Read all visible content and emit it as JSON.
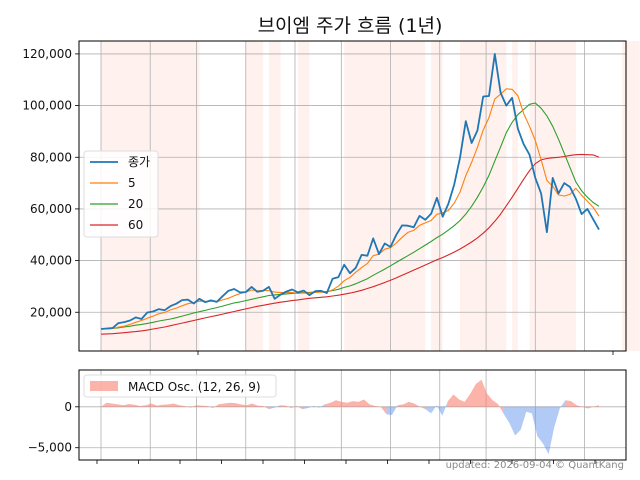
{
  "chart_data": [
    {
      "type": "line",
      "title": "브이엠 주가 흐름 (1년)",
      "ylim": [
        5000,
        125000
      ],
      "yticks": [
        20000,
        40000,
        60000,
        80000,
        100000,
        120000
      ],
      "ytick_labels": [
        "20,000",
        "40,000",
        "60,000",
        "80,000",
        "100,000",
        "120,000"
      ],
      "grid": true,
      "legend_position": "center-left",
      "shaded_periods": [
        [
          0,
          17
        ],
        [
          25,
          28
        ],
        [
          29,
          31
        ],
        [
          34,
          36
        ],
        [
          42,
          56
        ],
        [
          57,
          59
        ],
        [
          62,
          70
        ],
        [
          71,
          72
        ],
        [
          74,
          82
        ],
        [
          90,
          93
        ],
        [
          94,
          95
        ]
      ],
      "series": [
        {
          "name": "종가",
          "color": "#1f77b4",
          "values": [
            13500,
            13700,
            13900,
            15800,
            16200,
            16800,
            18000,
            17400,
            19900,
            20300,
            21200,
            20800,
            22400,
            23300,
            24700,
            24900,
            23400,
            25200,
            23900,
            24600,
            24000,
            26200,
            28300,
            29000,
            27700,
            27800,
            29800,
            27900,
            28300,
            29800,
            25200,
            26800,
            28000,
            28800,
            27700,
            28400,
            26600,
            28200,
            28300,
            27400,
            33000,
            33600,
            38400,
            35100,
            37200,
            42200,
            41900,
            48600,
            42500,
            46600,
            45300,
            50000,
            53600,
            53500,
            52900,
            57300,
            55800,
            58100,
            64300,
            57000,
            62000,
            69400,
            79800,
            94000,
            85500,
            90300,
            103500,
            103700,
            120000,
            105000,
            100000,
            103000,
            91000,
            85000,
            81000,
            72000,
            66000,
            51000,
            72000,
            66000,
            70000,
            68500,
            64000,
            58000,
            60000,
            56000,
            52000
          ]
        },
        {
          "name": "5",
          "color": "#ff7f0e",
          "values": [
            13500,
            13600,
            13700,
            14200,
            14600,
            15300,
            16100,
            16800,
            17700,
            18500,
            19400,
            19900,
            20900,
            21600,
            22500,
            23300,
            23700,
            24300,
            24200,
            24300,
            24100,
            24800,
            25400,
            26400,
            27200,
            27800,
            28600,
            28300,
            28400,
            28400,
            27800,
            27600,
            27600,
            27700,
            27300,
            27500,
            27400,
            27700,
            27800,
            27700,
            28700,
            30100,
            32200,
            33500,
            35500,
            37300,
            38900,
            41900,
            42500,
            44400,
            45000,
            46800,
            49000,
            50900,
            51700,
            53600,
            54600,
            55500,
            57900,
            58500,
            59400,
            62200,
            66500,
            72900,
            78000,
            83800,
            90500,
            95400,
            102500,
            104500,
            106500,
            106300,
            103800,
            96900,
            92000,
            86500,
            79100,
            71000,
            68800,
            65400,
            65000,
            65600,
            68000,
            65300,
            63000,
            60600,
            57200
          ]
        },
        {
          "name": "20",
          "color": "#2ca02c",
          "values": [
            13500,
            13600,
            13700,
            14000,
            14300,
            14600,
            15000,
            15300,
            15700,
            16100,
            16600,
            17000,
            17400,
            17900,
            18500,
            19100,
            19700,
            20200,
            20700,
            21300,
            21800,
            22400,
            23000,
            23600,
            24000,
            24500,
            25000,
            25500,
            26000,
            26500,
            26700,
            26900,
            27100,
            27300,
            27400,
            27600,
            27700,
            27800,
            27900,
            28000,
            28400,
            28900,
            29600,
            30200,
            31000,
            32000,
            33000,
            34300,
            35500,
            36700,
            38000,
            39300,
            40600,
            41900,
            43200,
            44600,
            46000,
            47400,
            48900,
            50200,
            51800,
            53500,
            55500,
            58000,
            61000,
            64500,
            68500,
            73000,
            78500,
            84000,
            89500,
            93500,
            96500,
            98500,
            100500,
            101000,
            99000,
            96000,
            92000,
            87000,
            81500,
            76000,
            70500,
            67000,
            64500,
            62500,
            61000
          ]
        },
        {
          "name": "60",
          "color": "#d62728",
          "values": [
            11500,
            11600,
            11700,
            11900,
            12100,
            12300,
            12500,
            12800,
            13100,
            13500,
            13900,
            14300,
            14800,
            15300,
            15800,
            16300,
            16800,
            17300,
            17800,
            18300,
            18800,
            19300,
            19800,
            20300,
            20800,
            21300,
            21800,
            22300,
            22700,
            23100,
            23500,
            23900,
            24200,
            24500,
            24800,
            25100,
            25400,
            25600,
            25800,
            26000,
            26300,
            26600,
            27000,
            27400,
            27900,
            28500,
            29200,
            29900,
            30700,
            31500,
            32400,
            33300,
            34300,
            35300,
            36300,
            37300,
            38300,
            39300,
            40300,
            41200,
            42200,
            43300,
            44500,
            45800,
            47200,
            48800,
            50600,
            52700,
            55200,
            58000,
            61200,
            64500,
            68000,
            71500,
            74800,
            77500,
            79000,
            79500,
            79800,
            80000,
            80300,
            80700,
            81000,
            81100,
            81000,
            80900,
            80000
          ]
        }
      ]
    },
    {
      "type": "area",
      "ylim": [
        -6500,
        4500
      ],
      "yticks": [
        -5000,
        0
      ],
      "ytick_labels": [
        "−5,000",
        "0"
      ],
      "grid": true,
      "legend_position": "top-left",
      "positive_color": "#fa8072",
      "negative_color": "#6495ed",
      "series": [
        {
          "name": "MACD Osc. (12, 26, 9)",
          "values": [
            0,
            500,
            400,
            300,
            200,
            350,
            250,
            100,
            200,
            400,
            150,
            250,
            300,
            400,
            200,
            100,
            -100,
            200,
            150,
            100,
            -150,
            300,
            400,
            500,
            450,
            300,
            200,
            400,
            150,
            100,
            -300,
            -100,
            200,
            150,
            -150,
            100,
            -300,
            -150,
            100,
            -100,
            300,
            500,
            800,
            600,
            500,
            700,
            600,
            900,
            300,
            100,
            0,
            -900,
            -1000,
            200,
            300,
            600,
            400,
            0,
            -300,
            -800,
            200,
            -1100,
            700,
            1500,
            900,
            600,
            1600,
            2800,
            3300,
            1600,
            800,
            300,
            -900,
            -2000,
            -3500,
            -2800,
            -600,
            -800,
            -3600,
            -4500,
            -5800,
            -2500,
            -200,
            800,
            700,
            200,
            0,
            -200,
            0,
            200
          ]
        }
      ]
    }
  ],
  "footer": "updated: 2026-09-04 © QuantKang"
}
